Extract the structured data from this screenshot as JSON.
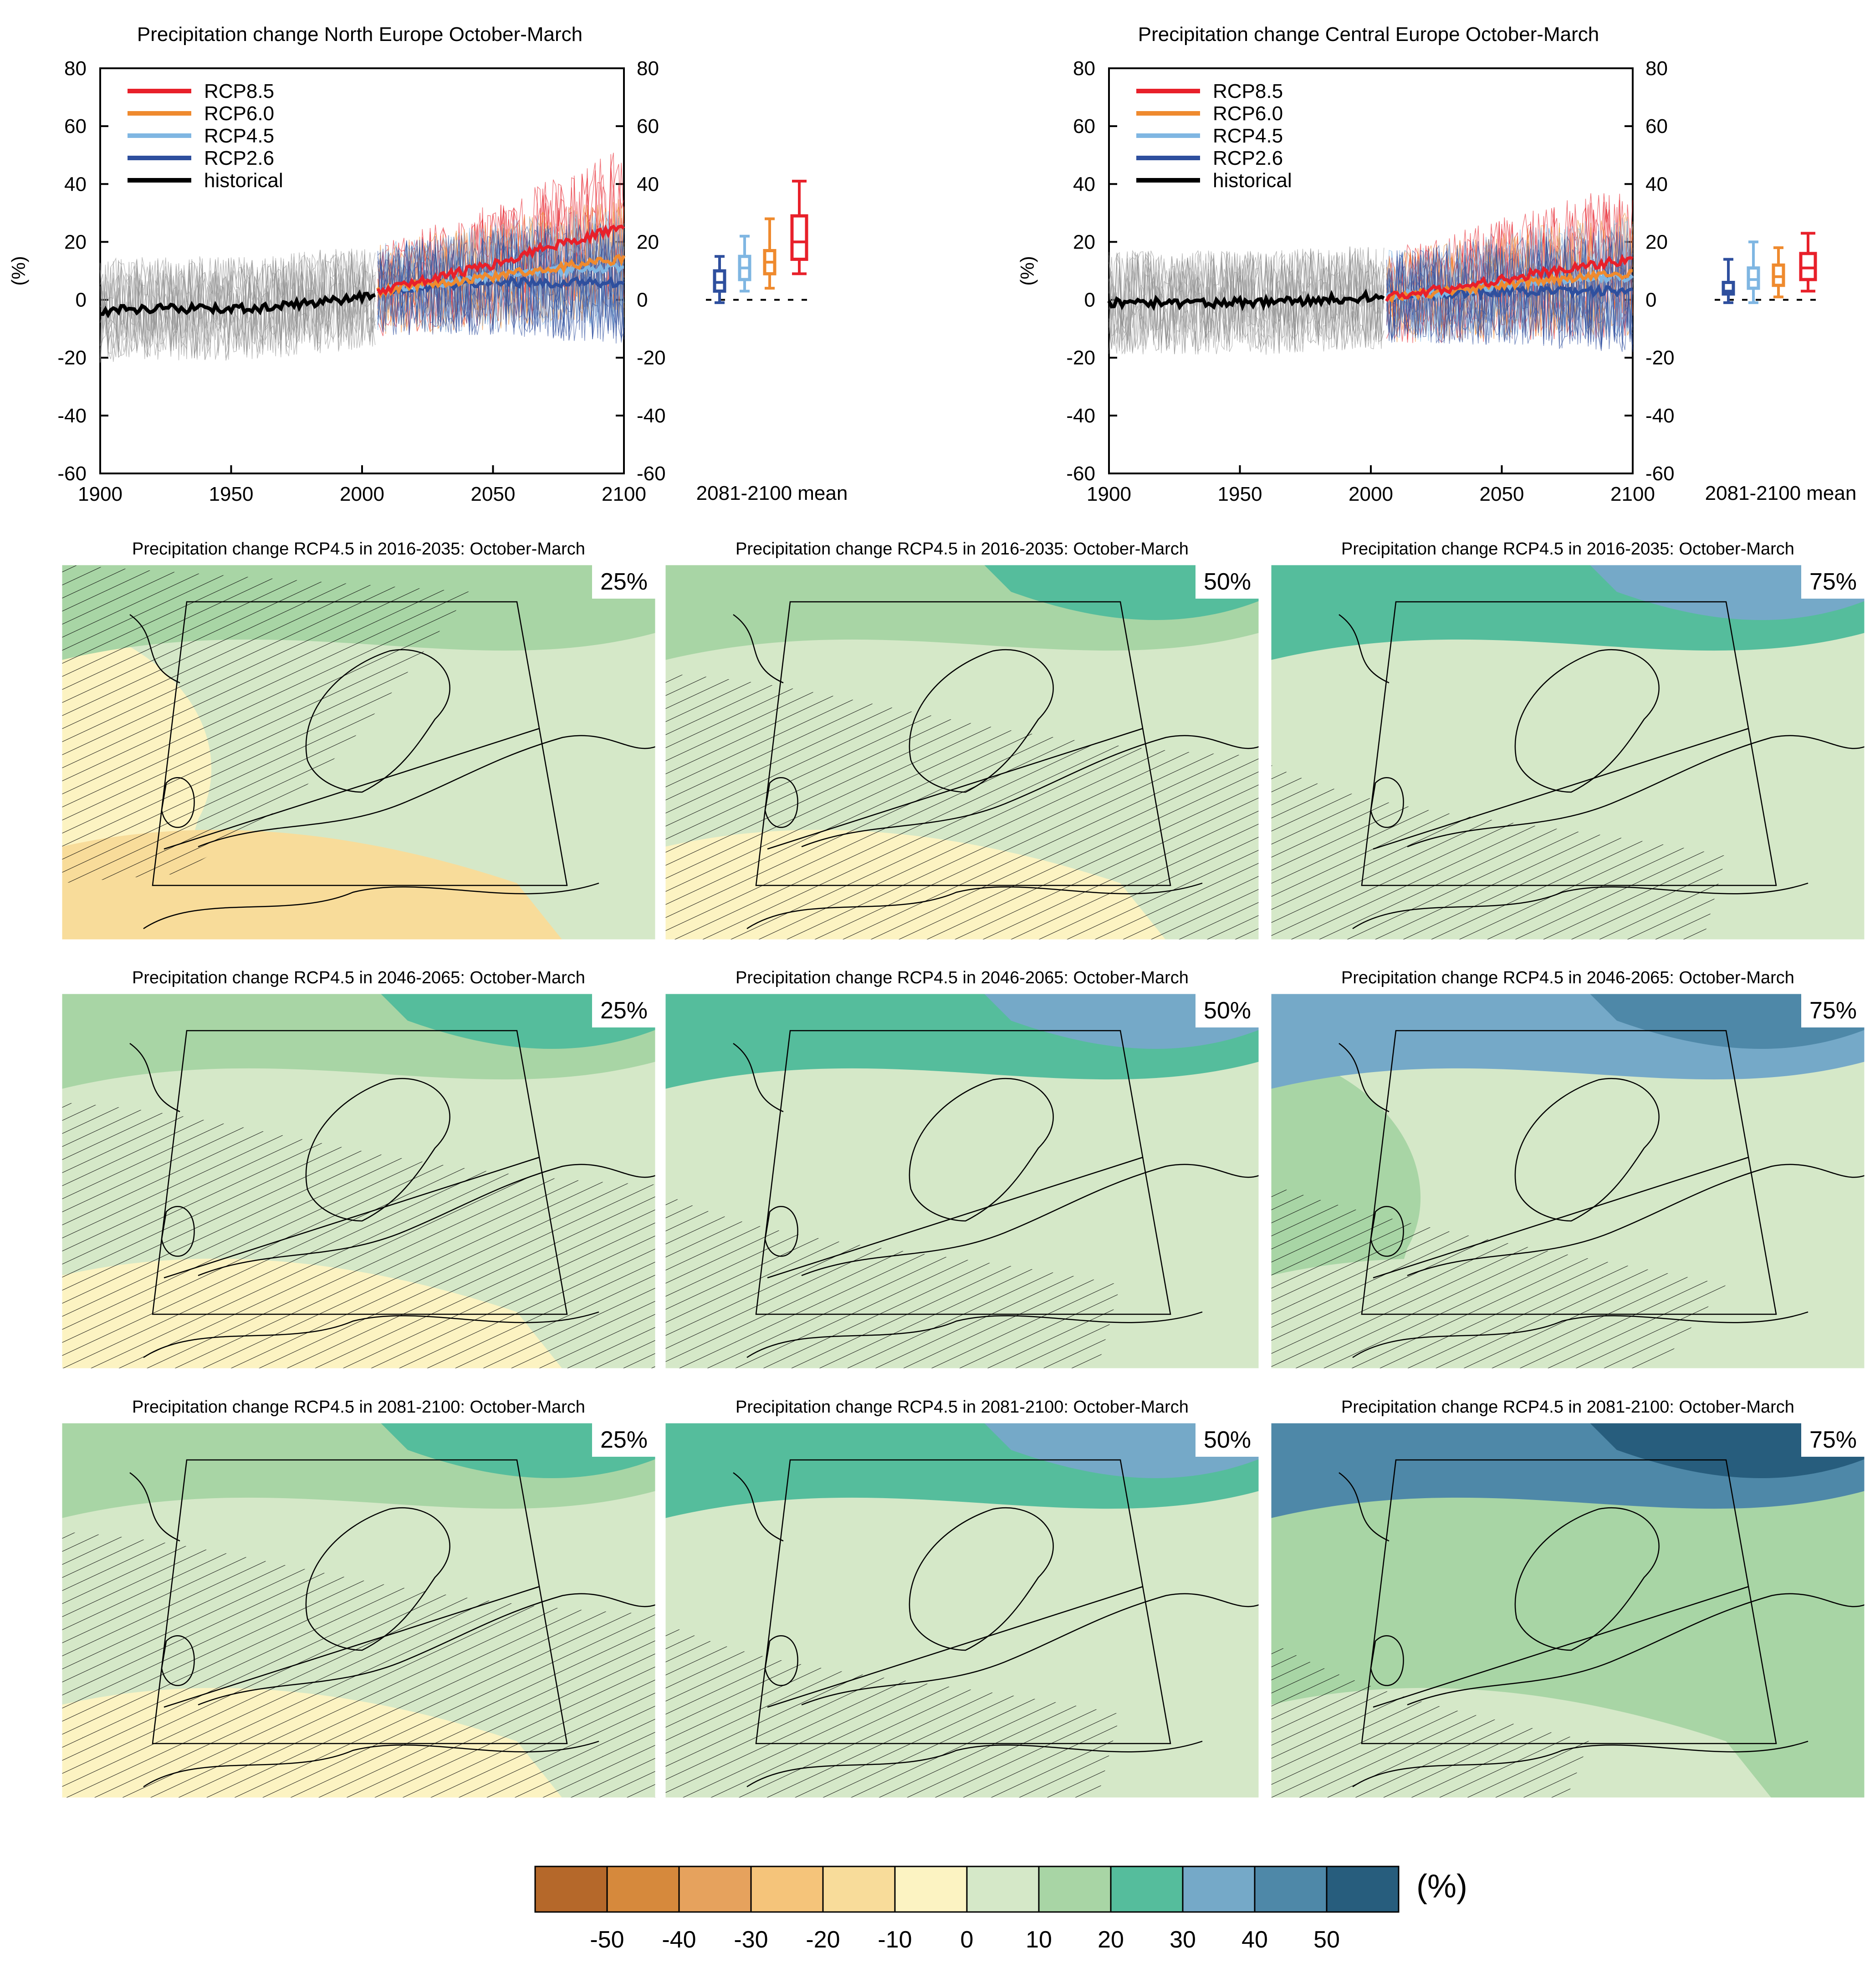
{
  "colors": {
    "rcp85": "#e8202a",
    "rcp60": "#ef8a2e",
    "rcp45": "#7fb6e2",
    "rcp26": "#2e4f9e",
    "historical": "#000000",
    "ensemble_hist": "#8a8a8a"
  },
  "chart_data": [
    {
      "type": "line",
      "title": "Precipitation change North Europe October-March",
      "ylabel": "(%)",
      "xlim": [
        1900,
        2100
      ],
      "ylim": [
        -60,
        80
      ],
      "xticks": [
        "1900",
        "1950",
        "2000",
        "2050",
        "2100"
      ],
      "yticks": [
        "80",
        "60",
        "40",
        "20",
        "0",
        "-20",
        "-40",
        "-60"
      ],
      "legend": [
        "RCP8.5",
        "RCP6.0",
        "RCP4.5",
        "RCP2.6",
        "historical"
      ],
      "legend_position": "top-left",
      "side_label": "2081-2100 mean",
      "series": [
        {
          "name": "historical",
          "x": [
            1900,
            1920,
            1940,
            1960,
            1980,
            2000,
            2005
          ],
          "y": [
            -4,
            -3,
            -3,
            -3,
            -1,
            1,
            2
          ]
        },
        {
          "name": "RCP2.6",
          "x": [
            2006,
            2030,
            2050,
            2070,
            2100
          ],
          "y": [
            3,
            5,
            6,
            6,
            6
          ]
        },
        {
          "name": "RCP4.5",
          "x": [
            2006,
            2030,
            2050,
            2070,
            2100
          ],
          "y": [
            3,
            6,
            8,
            10,
            11
          ]
        },
        {
          "name": "RCP6.0",
          "x": [
            2006,
            2030,
            2050,
            2070,
            2100
          ],
          "y": [
            3,
            6,
            8,
            11,
            14
          ]
        },
        {
          "name": "RCP8.5",
          "x": [
            2006,
            2030,
            2050,
            2070,
            2100
          ],
          "y": [
            3,
            8,
            12,
            18,
            25
          ]
        }
      ],
      "boxplots_2081_2100": [
        {
          "name": "RCP2.6",
          "min": -1,
          "q1": 3,
          "median": 6,
          "q3": 10,
          "max": 15
        },
        {
          "name": "RCP4.5",
          "min": 3,
          "q1": 7,
          "median": 11,
          "q3": 15,
          "max": 22
        },
        {
          "name": "RCP6.0",
          "min": 4,
          "q1": 9,
          "median": 13,
          "q3": 17,
          "max": 28
        },
        {
          "name": "RCP8.5",
          "min": 9,
          "q1": 14,
          "median": 20,
          "q3": 29,
          "max": 41
        }
      ]
    },
    {
      "type": "line",
      "title": "Precipitation change Central Europe October-March",
      "ylabel": "(%)",
      "xlim": [
        1900,
        2100
      ],
      "ylim": [
        -60,
        80
      ],
      "xticks": [
        "1900",
        "1950",
        "2000",
        "2050",
        "2100"
      ],
      "yticks": [
        "80",
        "60",
        "40",
        "20",
        "0",
        "-20",
        "-40",
        "-60"
      ],
      "legend": [
        "RCP8.5",
        "RCP6.0",
        "RCP4.5",
        "RCP2.6",
        "historical"
      ],
      "legend_position": "top-left",
      "side_label": "2081-2100 mean",
      "series": [
        {
          "name": "historical",
          "x": [
            1900,
            1920,
            1940,
            1960,
            1980,
            2000,
            2005
          ],
          "y": [
            -1,
            -1,
            -1,
            -1,
            0,
            1,
            1
          ]
        },
        {
          "name": "RCP2.6",
          "x": [
            2006,
            2030,
            2050,
            2070,
            2100
          ],
          "y": [
            1,
            2,
            3,
            3,
            3
          ]
        },
        {
          "name": "RCP4.5",
          "x": [
            2006,
            2030,
            2050,
            2070,
            2100
          ],
          "y": [
            1,
            3,
            5,
            7,
            8
          ]
        },
        {
          "name": "RCP6.0",
          "x": [
            2006,
            2030,
            2050,
            2070,
            2100
          ],
          "y": [
            1,
            3,
            5,
            7,
            9
          ]
        },
        {
          "name": "RCP8.5",
          "x": [
            2006,
            2030,
            2050,
            2070,
            2100
          ],
          "y": [
            1,
            4,
            7,
            10,
            14
          ]
        }
      ],
      "boxplots_2081_2100": [
        {
          "name": "RCP2.6",
          "min": -1,
          "q1": 2,
          "median": 3,
          "q3": 6,
          "max": 14
        },
        {
          "name": "RCP4.5",
          "min": -1,
          "q1": 4,
          "median": 7,
          "q3": 11,
          "max": 20
        },
        {
          "name": "RCP6.0",
          "min": 1,
          "q1": 5,
          "median": 8,
          "q3": 12,
          "max": 18
        },
        {
          "name": "RCP8.5",
          "min": 3,
          "q1": 7,
          "median": 11,
          "q3": 16,
          "max": 23
        }
      ]
    },
    {
      "type": "heatmap",
      "maps": [
        {
          "title": "Precipitation change RCP4.5 in 2016-2035: October-March",
          "percentile": "25%",
          "wet_level": 0
        },
        {
          "title": "Precipitation change RCP4.5 in 2016-2035: October-March",
          "percentile": "50%",
          "wet_level": 1
        },
        {
          "title": "Precipitation change RCP4.5 in 2016-2035: October-March",
          "percentile": "75%",
          "wet_level": 2
        },
        {
          "title": "Precipitation change RCP4.5 in 2046-2065: October-March",
          "percentile": "25%",
          "wet_level": 1
        },
        {
          "title": "Precipitation change RCP4.5 in 2046-2065: October-March",
          "percentile": "50%",
          "wet_level": 2
        },
        {
          "title": "Precipitation change RCP4.5 in 2046-2065: October-March",
          "percentile": "75%",
          "wet_level": 3
        },
        {
          "title": "Precipitation change RCP4.5 in 2081-2100: October-March",
          "percentile": "25%",
          "wet_level": 1
        },
        {
          "title": "Precipitation change RCP4.5 in 2081-2100: October-March",
          "percentile": "50%",
          "wet_level": 2
        },
        {
          "title": "Precipitation change RCP4.5 in 2081-2100: October-March",
          "percentile": "75%",
          "wet_level": 4
        }
      ],
      "colorbar": {
        "ticks": [
          "-50",
          "-40",
          "-30",
          "-20",
          "-10",
          "0",
          "10",
          "20",
          "30",
          "40",
          "50"
        ],
        "unit": "(%)",
        "colors": [
          "#b5682a",
          "#d6893c",
          "#e6a25d",
          "#f5c47a",
          "#f8dc9a",
          "#fcf3c2",
          "#d5e8c8",
          "#a8d5a5",
          "#55bd9c",
          "#75a9c8",
          "#4e88a8",
          "#275d7d"
        ]
      }
    }
  ]
}
